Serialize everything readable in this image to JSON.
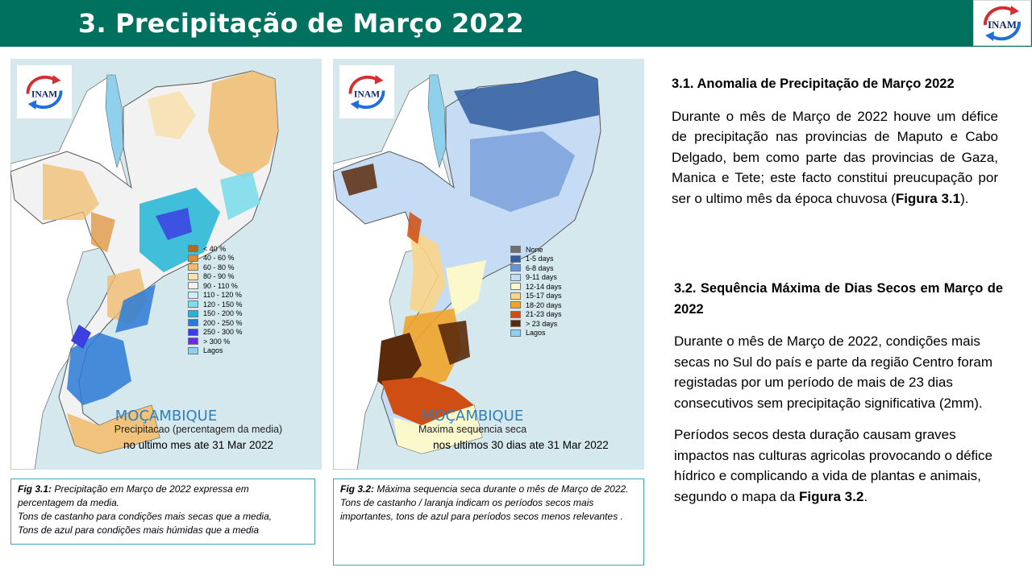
{
  "header": {
    "title": "3. Precipitação de Março 2022",
    "logo_text": "INAM"
  },
  "map1": {
    "logo_text": "INAM",
    "country_label": "MOÇAMBIQUE",
    "subtitle": "Precipitacao (percentagem da media)",
    "date_line": "no ultimo mes ate 31 Mar 2022",
    "legend": [
      {
        "label": "< 40 %",
        "color": "#b8671a"
      },
      {
        "label": "40 - 60 %",
        "color": "#dd8b2e"
      },
      {
        "label": "60 - 80 %",
        "color": "#f0bc6e"
      },
      {
        "label": "80 - 90 %",
        "color": "#f7e1b0"
      },
      {
        "label": "90 - 110 %",
        "color": "#f2f2f2"
      },
      {
        "label": "110 - 120 %",
        "color": "#c9f0f7"
      },
      {
        "label": "120 - 150 %",
        "color": "#7fdcea"
      },
      {
        "label": "150 - 200 %",
        "color": "#22b6d6"
      },
      {
        "label": "200 - 250 %",
        "color": "#2b7ad6"
      },
      {
        "label": "250 - 300 %",
        "color": "#3b3fe0"
      },
      {
        "label": "> 300 %",
        "color": "#6a2ce6"
      },
      {
        "label": "Lagos",
        "color": "#8fd0ec"
      }
    ]
  },
  "map2": {
    "logo_text": "INAM",
    "country_label": "MOÇAMBIQUE",
    "subtitle": "Maxima sequencia seca",
    "date_line": "nos ultimos 30 dias ate 31 Mar 2022",
    "legend": [
      {
        "label": "None",
        "color": "#6f6f6f"
      },
      {
        "label": "1-5 days",
        "color": "#2f5d9e"
      },
      {
        "label": "6-8 days",
        "color": "#6b93d6"
      },
      {
        "label": "9-11 days",
        "color": "#c6dcf5"
      },
      {
        "label": "12-14 days",
        "color": "#fbf8cc"
      },
      {
        "label": "15-17 days",
        "color": "#f9d48a"
      },
      {
        "label": "18-20 days",
        "color": "#f0a42a"
      },
      {
        "label": "21-23 days",
        "color": "#cf4e14"
      },
      {
        "label": "> 23 days",
        "color": "#5a2a0a"
      },
      {
        "label": "Lagos",
        "color": "#8fd0ec"
      }
    ]
  },
  "caption1": {
    "label": "Fig 3.1:",
    "line1": " Precipitação em Março de 2022  expressa em percentagem da media.",
    "line2": "Tons de castanho para condições mais secas que a media,",
    "line3": "Tons de azul para condições mais húmidas que a media"
  },
  "caption2": {
    "label": "Fig 3.2:",
    "line1": " Máxima sequencia seca durante o mês de Março de 2022.",
    "line2": "Tons de castanho / laranja indicam os períodos secos mais importantes, tons de azul para períodos secos menos relevantes ."
  },
  "section1": {
    "title": "3.1. Anomalia de Precipitação de Março 2022",
    "para_before": "Durante o mês de Março de 2022 houve um défice de precipitação nas provincias de Maputo e Cabo Delgado, bem como parte  das provincias de Gaza, Manica e Tete; este facto constitui preucupação por ser o ultimo mês da época chuvosa (",
    "para_bold": "Figura 3.1",
    "para_after": ")."
  },
  "section2": {
    "title": "3.2. Sequência Máxima de Dias Secos em Março de 2022",
    "para1": "Durante o mês de Março de  2022, condições mais secas no Sul do país e parte da região Centro foram registadas por um período de mais de 23 dias consecutivos sem precipitação significativa (2mm).",
    "para2_before": "Períodos secos desta duração causam graves impactos nas culturas agricolas  provocando o défice hídrico e complicando a vida de plantas e animais, segundo o mapa da ",
    "para2_bold": "Figura 3.2",
    "para2_after": "."
  }
}
